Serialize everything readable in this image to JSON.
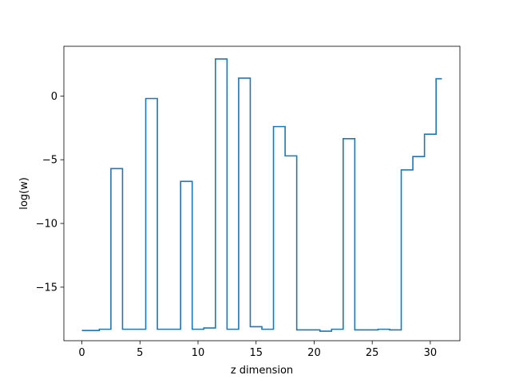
{
  "chart_data": {
    "type": "line",
    "drawstyle": "steps-mid",
    "title": "",
    "xlabel": "z dimension",
    "ylabel": "log(w)",
    "xlim": [
      -1.55,
      32.55
    ],
    "ylim": [
      -19.2,
      3.9
    ],
    "xticks": [
      0,
      5,
      10,
      15,
      20,
      25,
      30
    ],
    "xtick_labels": [
      "0",
      "5",
      "10",
      "15",
      "20",
      "25",
      "30"
    ],
    "yticks": [
      -15,
      -10,
      -5,
      0
    ],
    "ytick_labels": [
      "−15",
      "−10",
      "−5",
      "0"
    ],
    "grid": false,
    "legend": "none",
    "color": "#1f77b4",
    "series": [
      {
        "x": [
          0,
          1,
          2,
          3,
          4,
          5,
          6,
          7,
          8,
          9,
          10,
          11,
          12,
          13,
          14,
          15,
          16,
          17,
          18,
          19,
          20,
          21,
          22,
          23,
          24,
          25,
          26,
          27,
          28,
          29,
          30,
          31
        ],
        "y": [
          -18.4,
          -18.4,
          -18.3,
          -5.7,
          -18.3,
          -18.3,
          -0.2,
          -18.3,
          -18.3,
          -6.7,
          -18.3,
          -18.2,
          2.9,
          -18.3,
          1.4,
          -18.1,
          -18.3,
          -2.4,
          -4.7,
          -18.35,
          -18.35,
          -18.45,
          -18.3,
          -3.35,
          -18.35,
          -18.35,
          -18.3,
          -18.35,
          -5.8,
          -4.75,
          -3.0,
          1.35
        ]
      }
    ]
  }
}
